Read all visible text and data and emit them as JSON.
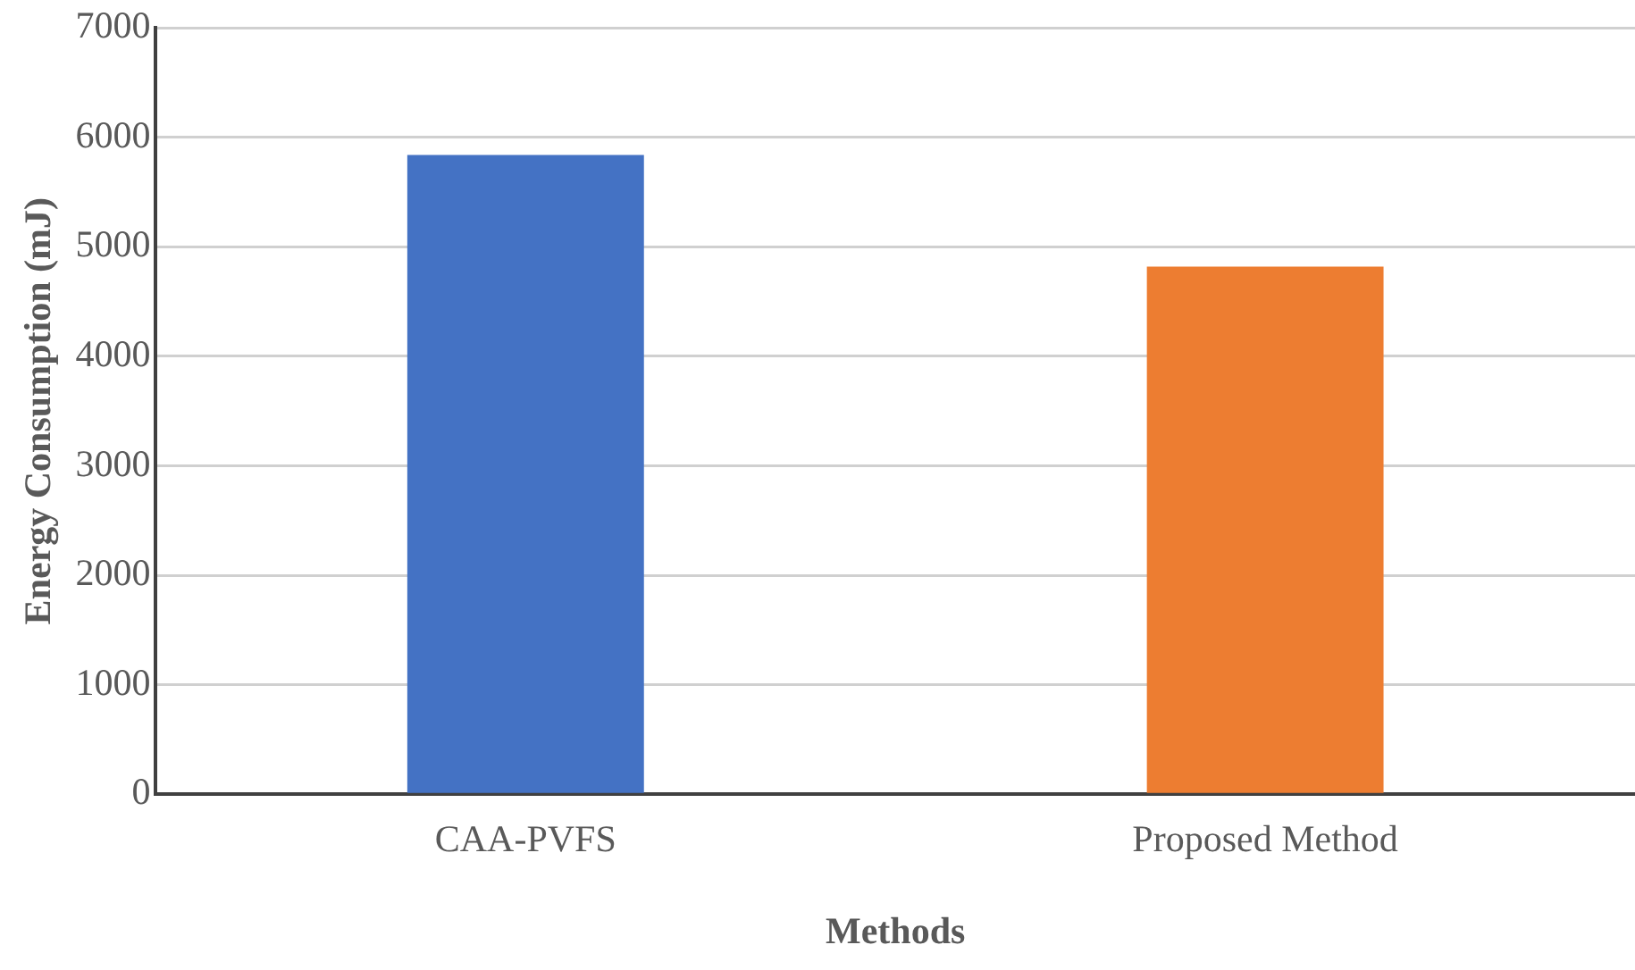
{
  "chart_data": {
    "type": "bar",
    "xlabel": "Methods",
    "ylabel": "Energy Consumption (mJ)",
    "categories": [
      "CAA-PVFS",
      "Proposed Method"
    ],
    "values": [
      5840,
      4820
    ],
    "colors": [
      "#4472c4",
      "#ed7d31"
    ],
    "ylim": [
      0,
      7000
    ],
    "yticks": [
      0,
      1000,
      2000,
      3000,
      4000,
      5000,
      6000,
      7000
    ],
    "grid": "y",
    "legend": false
  }
}
